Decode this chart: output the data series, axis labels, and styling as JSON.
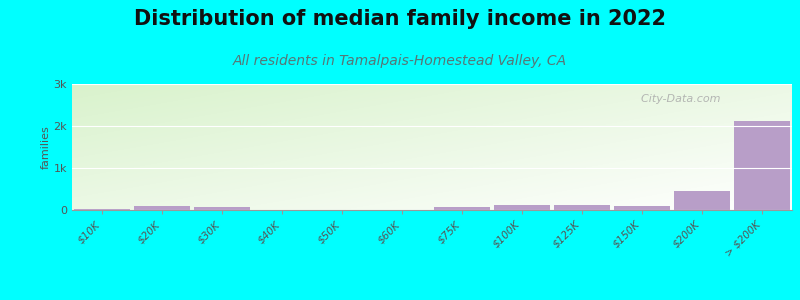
{
  "title": "Distribution of median family income in 2022",
  "subtitle": "All residents in Tamalpais-Homestead Valley, CA",
  "ylabel": "families",
  "background_color": "#00FFFF",
  "bar_color_purple": "#b89ec8",
  "categories": [
    "$10K",
    "$20K",
    "$30K",
    "$40K",
    "$50K",
    "$60K",
    "$75K",
    "$100K",
    "$125K",
    "$150K",
    "$200K",
    "> $200K"
  ],
  "values": [
    15,
    90,
    75,
    10,
    8,
    8,
    75,
    110,
    125,
    90,
    450,
    2120
  ],
  "ylim": [
    0,
    3000
  ],
  "yticks": [
    0,
    1000,
    2000,
    3000
  ],
  "ytick_labels": [
    "0",
    "1k",
    "2k",
    "3k"
  ],
  "watermark": "  City-Data.com",
  "title_fontsize": 15,
  "subtitle_fontsize": 10,
  "ylabel_fontsize": 8
}
